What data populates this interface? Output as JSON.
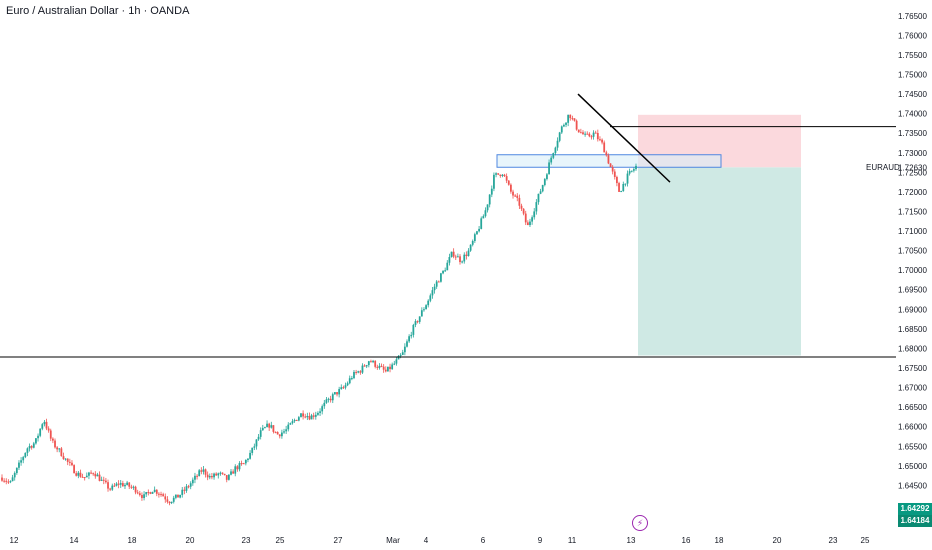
{
  "header": {
    "title": "Euro / Australian Dollar · 1h · OANDA",
    "symbol_label": "EURAUD"
  },
  "price_boxes": {
    "upper": "1.64292",
    "lower": "1.64184"
  },
  "event_icon": "lightning-icon",
  "colors": {
    "up": "#26a69a",
    "down": "#ef5350",
    "stop": "#fbd9dd",
    "target": "#cfe9e4",
    "zone_fill": "#d8eef8",
    "zone_stroke": "#4f87e0",
    "price_box": "#089981",
    "line": "#000000"
  },
  "chart_data": {
    "type": "candlestick",
    "title": "Euro / Australian Dollar · 1h · OANDA",
    "symbol": "EURAUD",
    "ylim": [
      1.6405,
      1.767
    ],
    "y_ticks": [
      "1.76500",
      "1.76000",
      "1.75500",
      "1.75000",
      "1.74500",
      "1.74000",
      "1.73500",
      "1.73000",
      "1.72500",
      "1.72000",
      "1.71500",
      "1.71000",
      "1.70500",
      "1.70000",
      "1.69500",
      "1.69000",
      "1.68500",
      "1.68000",
      "1.67500",
      "1.67000",
      "1.66500",
      "1.66000",
      "1.65500",
      "1.65000",
      "1.64500"
    ],
    "current_price_label": "1.72630",
    "x_ticks": [
      "12",
      "14",
      "18",
      "20",
      "23",
      "25",
      "27",
      "Mar",
      "4",
      "6",
      "9",
      "11",
      "13",
      "16",
      "18",
      "20",
      "23",
      "25"
    ],
    "approx_close_path": [
      1.647,
      1.6455,
      1.65,
      1.6545,
      1.656,
      1.662,
      1.656,
      1.6535,
      1.6505,
      1.648,
      1.647,
      1.6485,
      1.646,
      1.644,
      1.6455,
      1.645,
      1.644,
      1.642,
      1.644,
      1.643,
      1.641,
      1.642,
      1.644,
      1.6465,
      1.649,
      1.647,
      1.648,
      1.6465,
      1.6495,
      1.6505,
      1.654,
      1.6585,
      1.6605,
      1.658,
      1.659,
      1.6615,
      1.6635,
      1.6625,
      1.664,
      1.6665,
      1.6685,
      1.67,
      1.673,
      1.6745,
      1.677,
      1.6755,
      1.674,
      1.676,
      1.6785,
      1.684,
      1.688,
      1.692,
      1.6965,
      1.7,
      1.7045,
      1.7025,
      1.705,
      1.71,
      1.7155,
      1.724,
      1.725,
      1.72,
      1.717,
      1.711,
      1.717,
      1.723,
      1.73,
      1.736,
      1.74,
      1.736,
      1.734,
      1.735,
      1.732,
      1.726,
      1.72,
      1.724,
      1.7265
    ],
    "horizontal_lines": [
      1.7367,
      1.6778
    ],
    "trendline": {
      "from": [
        1.745,
        "Mar 11"
      ],
      "to": [
        1.7225,
        "Mar 13"
      ]
    },
    "supply_zone": {
      "top": 1.7295,
      "bottom": 1.7263
    },
    "short_position": {
      "entry": 1.7263,
      "stop": 1.7397,
      "target": 1.6782
    }
  }
}
